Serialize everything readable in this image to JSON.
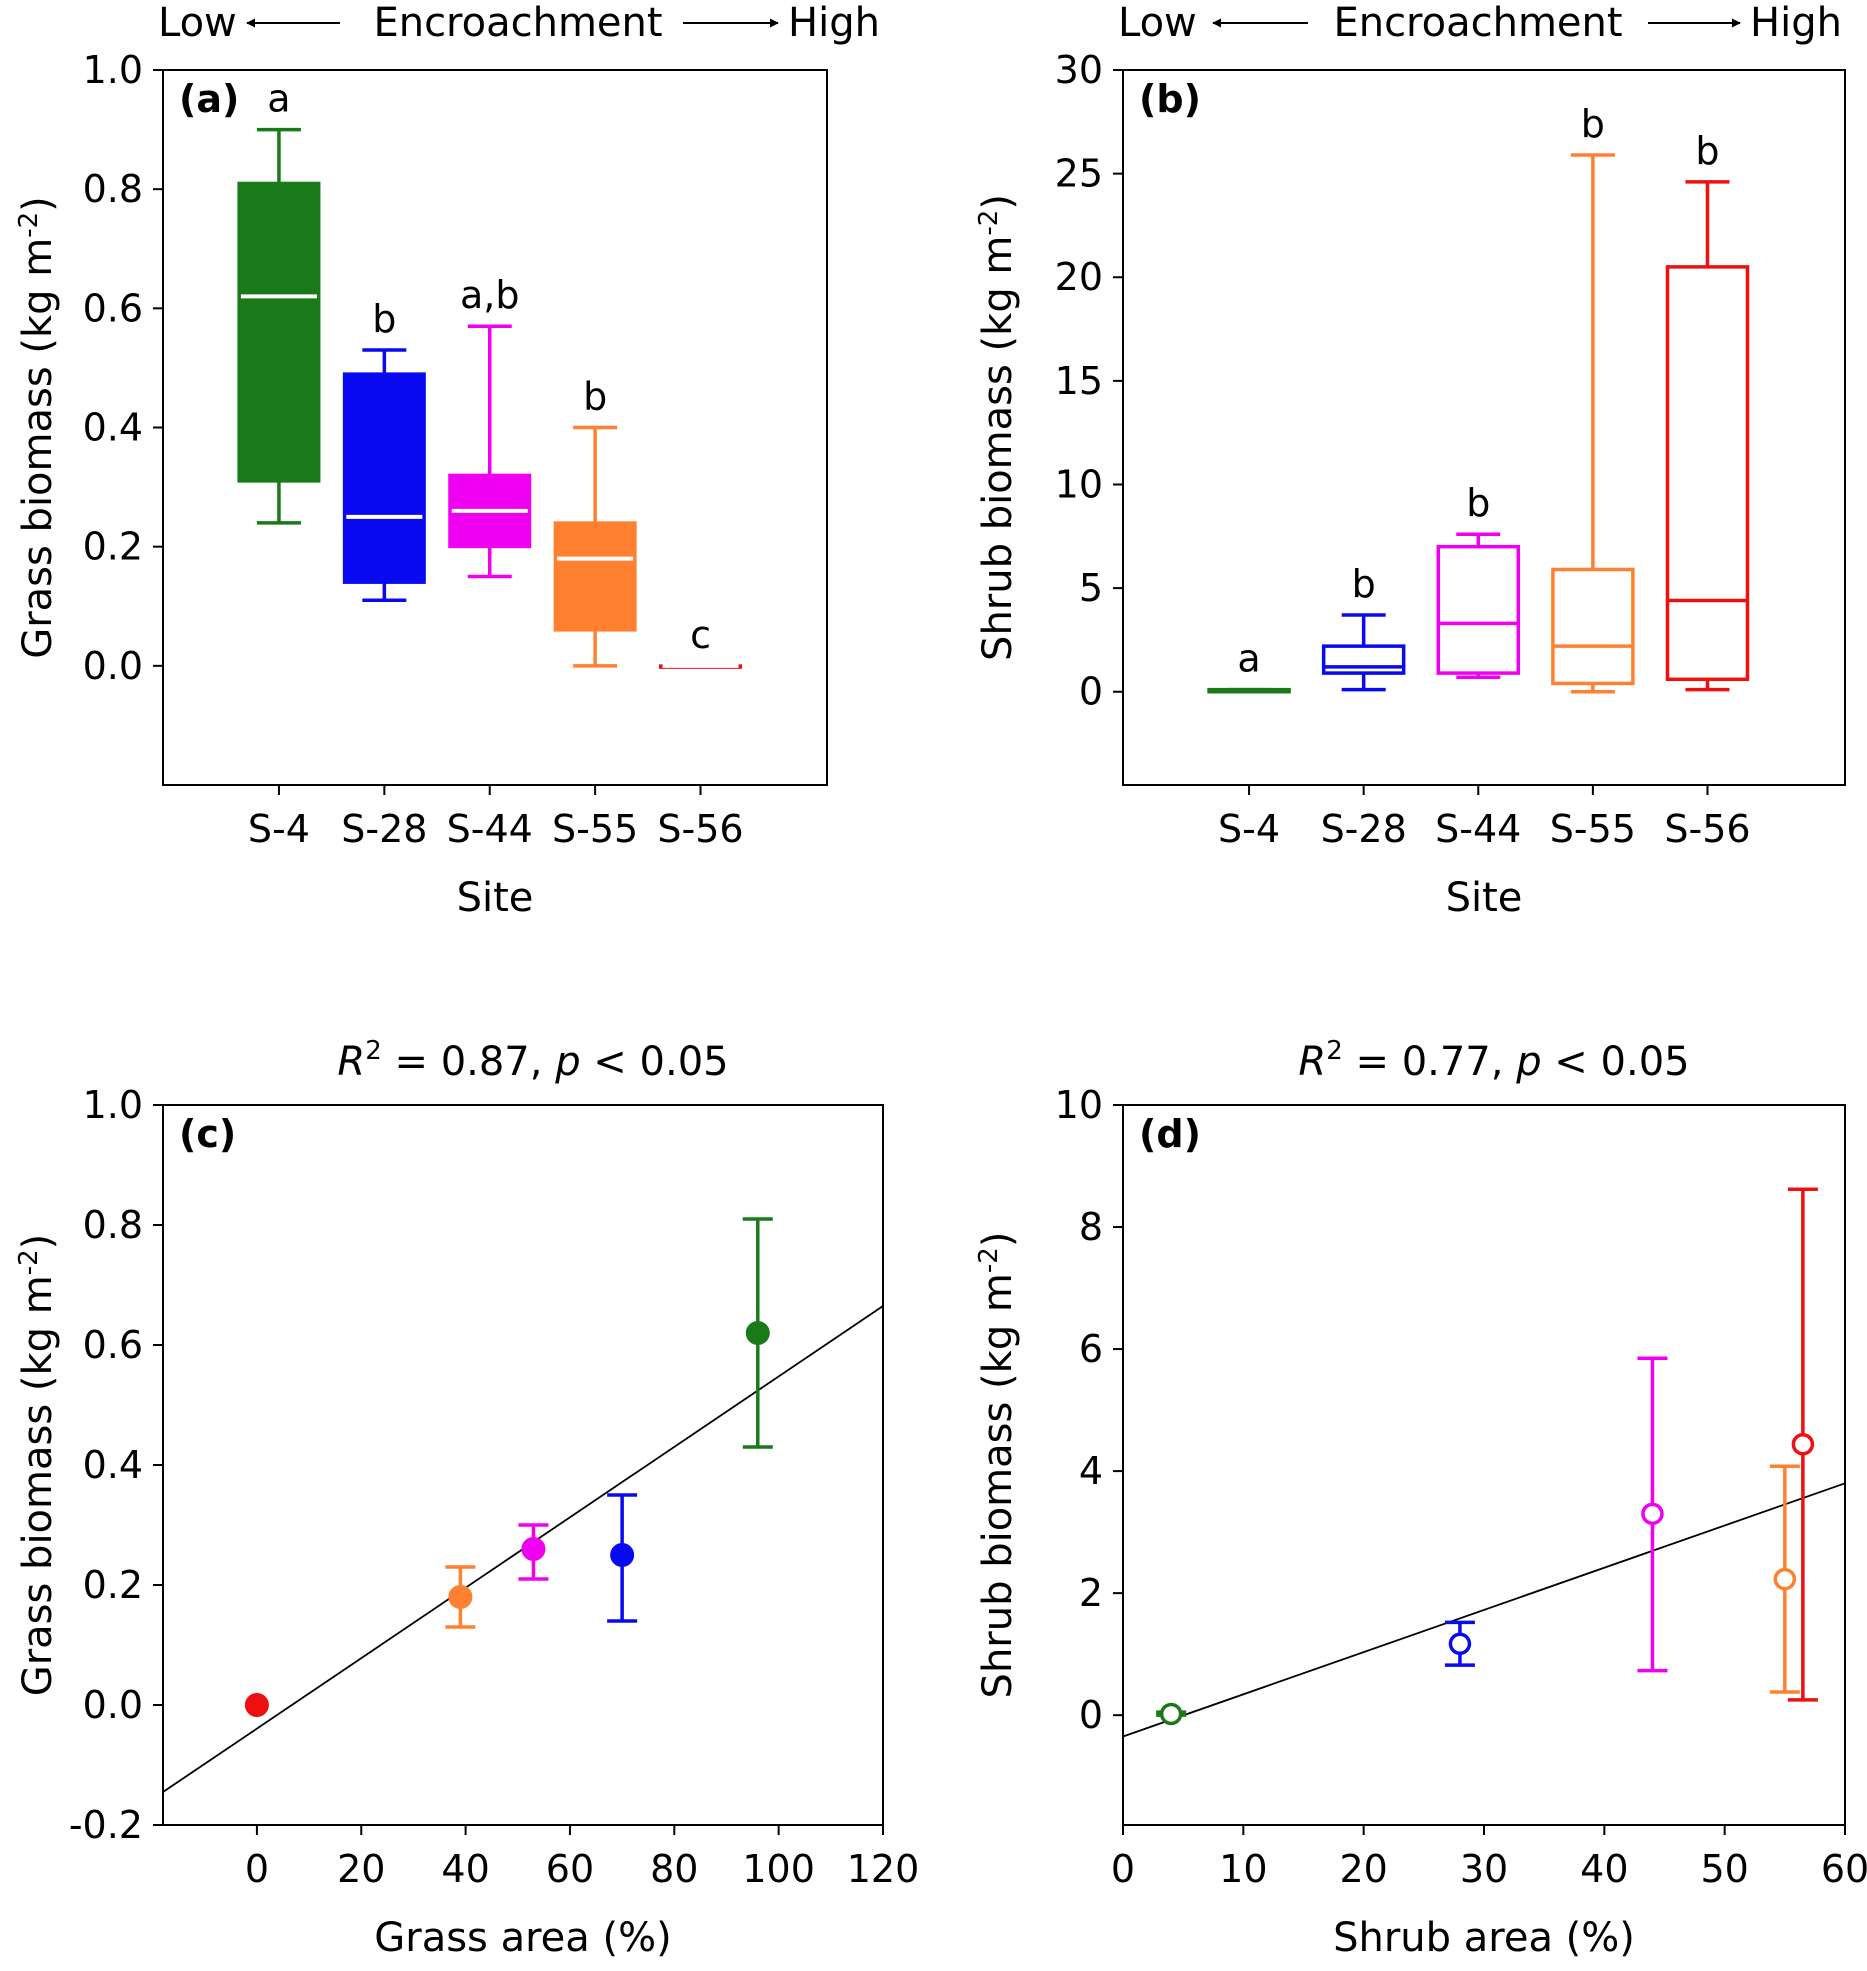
{
  "figure": {
    "header_low": "Low",
    "header_mid": "Encroachment",
    "header_high": "High"
  },
  "chart_data": [
    {
      "id": "a",
      "type": "box",
      "panel_label": "(a)",
      "title": "",
      "xlabel": "Site",
      "ylabel": "Grass biomass (kg m-2)",
      "ylabel_main": "Grass biomass (kg m",
      "ylabel_sup": "-2",
      "ylabel_end": ")",
      "ylim": [
        -0.2,
        1.0
      ],
      "yticks": [
        "0.0",
        "0.2",
        "0.4",
        "0.6",
        "0.8",
        "1.0"
      ],
      "categories": [
        "S-4",
        "S-28",
        "S-44",
        "S-55",
        "S-56"
      ],
      "filled": true,
      "boxes": [
        {
          "site": "S-4",
          "min": 0.24,
          "q1": 0.31,
          "median": 0.62,
          "q3": 0.81,
          "max": 0.9,
          "letter": "a",
          "color": "#1a7a1a"
        },
        {
          "site": "S-28",
          "min": 0.11,
          "q1": 0.14,
          "median": 0.25,
          "q3": 0.49,
          "max": 0.53,
          "letter": "b",
          "color": "#0a0af0"
        },
        {
          "site": "S-44",
          "min": 0.15,
          "q1": 0.2,
          "median": 0.26,
          "q3": 0.32,
          "max": 0.57,
          "letter": "a,b",
          "color": "#f000f0"
        },
        {
          "site": "S-55",
          "min": 0.0,
          "q1": 0.06,
          "median": 0.18,
          "q3": 0.24,
          "max": 0.4,
          "letter": "b",
          "color": "#ff8030"
        },
        {
          "site": "S-56",
          "min": 0.0,
          "q1": 0.0,
          "median": 0.0,
          "q3": 0.0,
          "max": 0.0,
          "letter": "c",
          "color": "#ee1010"
        }
      ]
    },
    {
      "id": "b",
      "type": "box",
      "panel_label": "(b)",
      "title": "",
      "xlabel": "Site",
      "ylabel": "Shrub biomass (kg m-2)",
      "ylabel_main": "Shrub biomass (kg m",
      "ylabel_sup": "-2",
      "ylabel_end": ")",
      "ylim": [
        -4.5,
        30
      ],
      "yticks": [
        "0",
        "5",
        "10",
        "15",
        "20",
        "25",
        "30"
      ],
      "categories": [
        "S-4",
        "S-28",
        "S-44",
        "S-55",
        "S-56"
      ],
      "filled": false,
      "boxes": [
        {
          "site": "S-4",
          "min": 0.0,
          "q1": 0.0,
          "median": 0.05,
          "q3": 0.1,
          "max": 0.1,
          "letter": "a",
          "color": "#1a7a1a"
        },
        {
          "site": "S-28",
          "min": 0.1,
          "q1": 0.9,
          "median": 1.2,
          "q3": 2.2,
          "max": 3.7,
          "letter": "b",
          "color": "#0a0af0"
        },
        {
          "site": "S-44",
          "min": 0.7,
          "q1": 0.9,
          "median": 3.3,
          "q3": 7.0,
          "max": 7.6,
          "letter": "b",
          "color": "#f000f0"
        },
        {
          "site": "S-55",
          "min": 0.0,
          "q1": 0.4,
          "median": 2.2,
          "q3": 5.9,
          "max": 25.9,
          "letter": "b",
          "color": "#ff8030"
        },
        {
          "site": "S-56",
          "min": 0.1,
          "q1": 0.6,
          "median": 4.4,
          "q3": 20.5,
          "max": 24.6,
          "letter": "b",
          "color": "#ee1010"
        }
      ]
    },
    {
      "id": "c",
      "type": "scatter",
      "panel_label": "(c)",
      "title": "R2 = 0.87, p < 0.05",
      "title_r": "R",
      "title_sup": "2",
      "title_mid": " = 0.87, ",
      "title_p": "p",
      "title_end": " < 0.05",
      "xlabel": "Grass area (%)",
      "ylabel": "Grass biomass (kg m-2)",
      "ylabel_main": "Grass biomass (kg m",
      "ylabel_sup": "-2",
      "ylabel_end": ")",
      "xlim": [
        -18,
        120
      ],
      "ylim": [
        -0.2,
        1.0
      ],
      "xticks": [
        "0",
        "20",
        "40",
        "60",
        "80",
        "100",
        "120"
      ],
      "yticks": [
        "-0.2",
        "0.0",
        "0.2",
        "0.4",
        "0.6",
        "0.8",
        "1.0"
      ],
      "marker": "filled",
      "points": [
        {
          "x": 0,
          "y": 0.0,
          "lo": 0.0,
          "hi": 0.0,
          "color": "#ee1010"
        },
        {
          "x": 39,
          "y": 0.18,
          "lo": 0.13,
          "hi": 0.23,
          "color": "#ff8030"
        },
        {
          "x": 53,
          "y": 0.26,
          "lo": 0.21,
          "hi": 0.3,
          "color": "#f000f0"
        },
        {
          "x": 70,
          "y": 0.25,
          "lo": 0.14,
          "hi": 0.35,
          "color": "#0a0af0"
        },
        {
          "x": 96,
          "y": 0.62,
          "lo": 0.43,
          "hi": 0.81,
          "color": "#1a7a1a"
        }
      ],
      "fit": {
        "x0": -18,
        "y0": -0.145,
        "x1": 120,
        "y1": 0.665
      }
    },
    {
      "id": "d",
      "type": "scatter",
      "panel_label": "(d)",
      "title": "R2 = 0.77, p < 0.05",
      "title_r": "R",
      "title_sup": "2",
      "title_mid": " = 0.77, ",
      "title_p": "p",
      "title_end": " < 0.05",
      "xlabel": "Shrub area (%)",
      "ylabel": "Shrub biomass (kg m-2)",
      "ylabel_main": "Shrub biomass (kg m",
      "ylabel_sup": "-2",
      "ylabel_end": ")",
      "xlim": [
        0,
        60
      ],
      "ylim": [
        -1.8,
        10
      ],
      "xticks": [
        "0",
        "10",
        "20",
        "30",
        "40",
        "50",
        "60"
      ],
      "yticks": [
        "0",
        "2",
        "4",
        "6",
        "8",
        "10"
      ],
      "marker": "open",
      "points": [
        {
          "x": 4,
          "y": 0.02,
          "lo": 0.0,
          "hi": 0.05,
          "color": "#1a7a1a"
        },
        {
          "x": 28,
          "y": 1.17,
          "lo": 0.82,
          "hi": 1.52,
          "color": "#0a0af0"
        },
        {
          "x": 44,
          "y": 3.3,
          "lo": 0.73,
          "hi": 5.85,
          "color": "#f000f0"
        },
        {
          "x": 55,
          "y": 2.23,
          "lo": 0.38,
          "hi": 4.08,
          "color": "#ff8030"
        },
        {
          "x": 56.5,
          "y": 4.44,
          "lo": 0.25,
          "hi": 8.62,
          "color": "#ee1010"
        }
      ],
      "fit": {
        "x0": 0,
        "y0": -0.35,
        "x1": 60,
        "y1": 3.8
      }
    }
  ]
}
